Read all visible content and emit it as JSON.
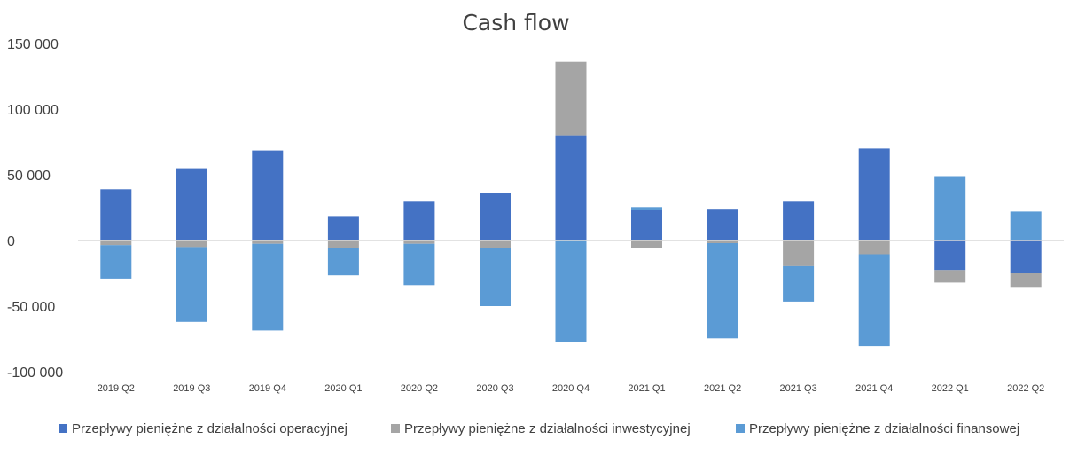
{
  "chart_data": {
    "type": "bar",
    "stacked": true,
    "title": "Cash flow",
    "categories": [
      "2019 Q2",
      "2019 Q3",
      "2019 Q4",
      "2020 Q1",
      "2020 Q2",
      "2020 Q3",
      "2020 Q4",
      "2021 Q1",
      "2021 Q2",
      "2021 Q3",
      "2021 Q4",
      "2022 Q1",
      "2022 Q2"
    ],
    "series": [
      {
        "name": "Przepływy pieniężne z działalności operacyjnej",
        "color": "#4472C4",
        "values": [
          39000,
          55000,
          68500,
          18000,
          29500,
          36000,
          80000,
          23000,
          23500,
          29500,
          70000,
          -22500,
          -25000
        ]
      },
      {
        "name": "Przepływy pieniężne z działalności inwestycyjnej",
        "color": "#A5A5A5",
        "values": [
          -3500,
          -5000,
          -2500,
          -6000,
          -2500,
          -5500,
          56000,
          -6000,
          -2000,
          -19500,
          -10500,
          -9500,
          -11000
        ]
      },
      {
        "name": "Przepływy pieniężne z działalności finansowej",
        "color": "#5B9BD5",
        "values": [
          -25500,
          -57000,
          -66000,
          -20500,
          -31500,
          -44500,
          -77500,
          2500,
          -72500,
          -27000,
          -70000,
          49000,
          22000
        ]
      }
    ],
    "ylim": [
      -100000,
      150000
    ],
    "yticks": [
      150000,
      100000,
      50000,
      0,
      -50000,
      -100000
    ],
    "ytick_labels": [
      "150 000",
      "100 000",
      "50 000",
      "0",
      "-50 000",
      "-100 000"
    ],
    "grid": false,
    "legend": "bottom"
  }
}
